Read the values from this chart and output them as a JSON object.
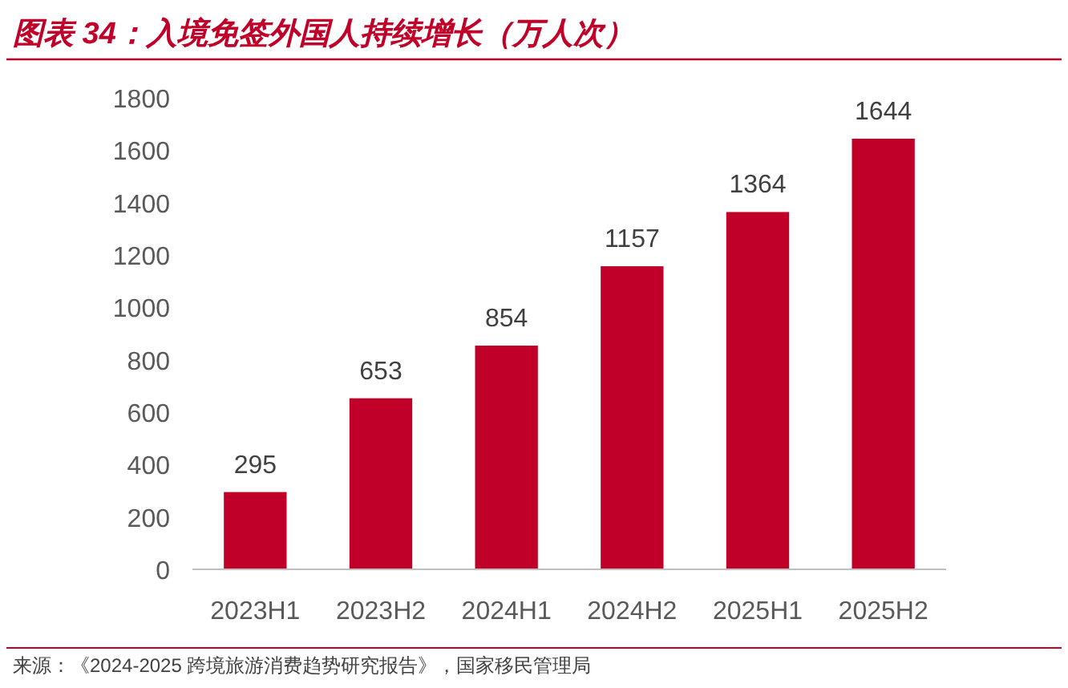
{
  "chart_data": {
    "type": "bar",
    "title": "图表 34：入境免签外国人持续增长（万人次）",
    "categories": [
      "2023H1",
      "2023H2",
      "2024H1",
      "2024H2",
      "2025H1",
      "2025H2"
    ],
    "values": [
      295,
      653,
      854,
      1157,
      1364,
      1644
    ],
    "color": "#c00029",
    "ylim": [
      0,
      1800
    ],
    "yticks": [
      0,
      200,
      400,
      600,
      800,
      1000,
      1200,
      1400,
      1600,
      1800
    ],
    "data_labels": true,
    "grid": false,
    "annotations": [
      "来源：《2024-2025 跨境旅游消费趋势研究报告》，国家移民管理局"
    ]
  }
}
